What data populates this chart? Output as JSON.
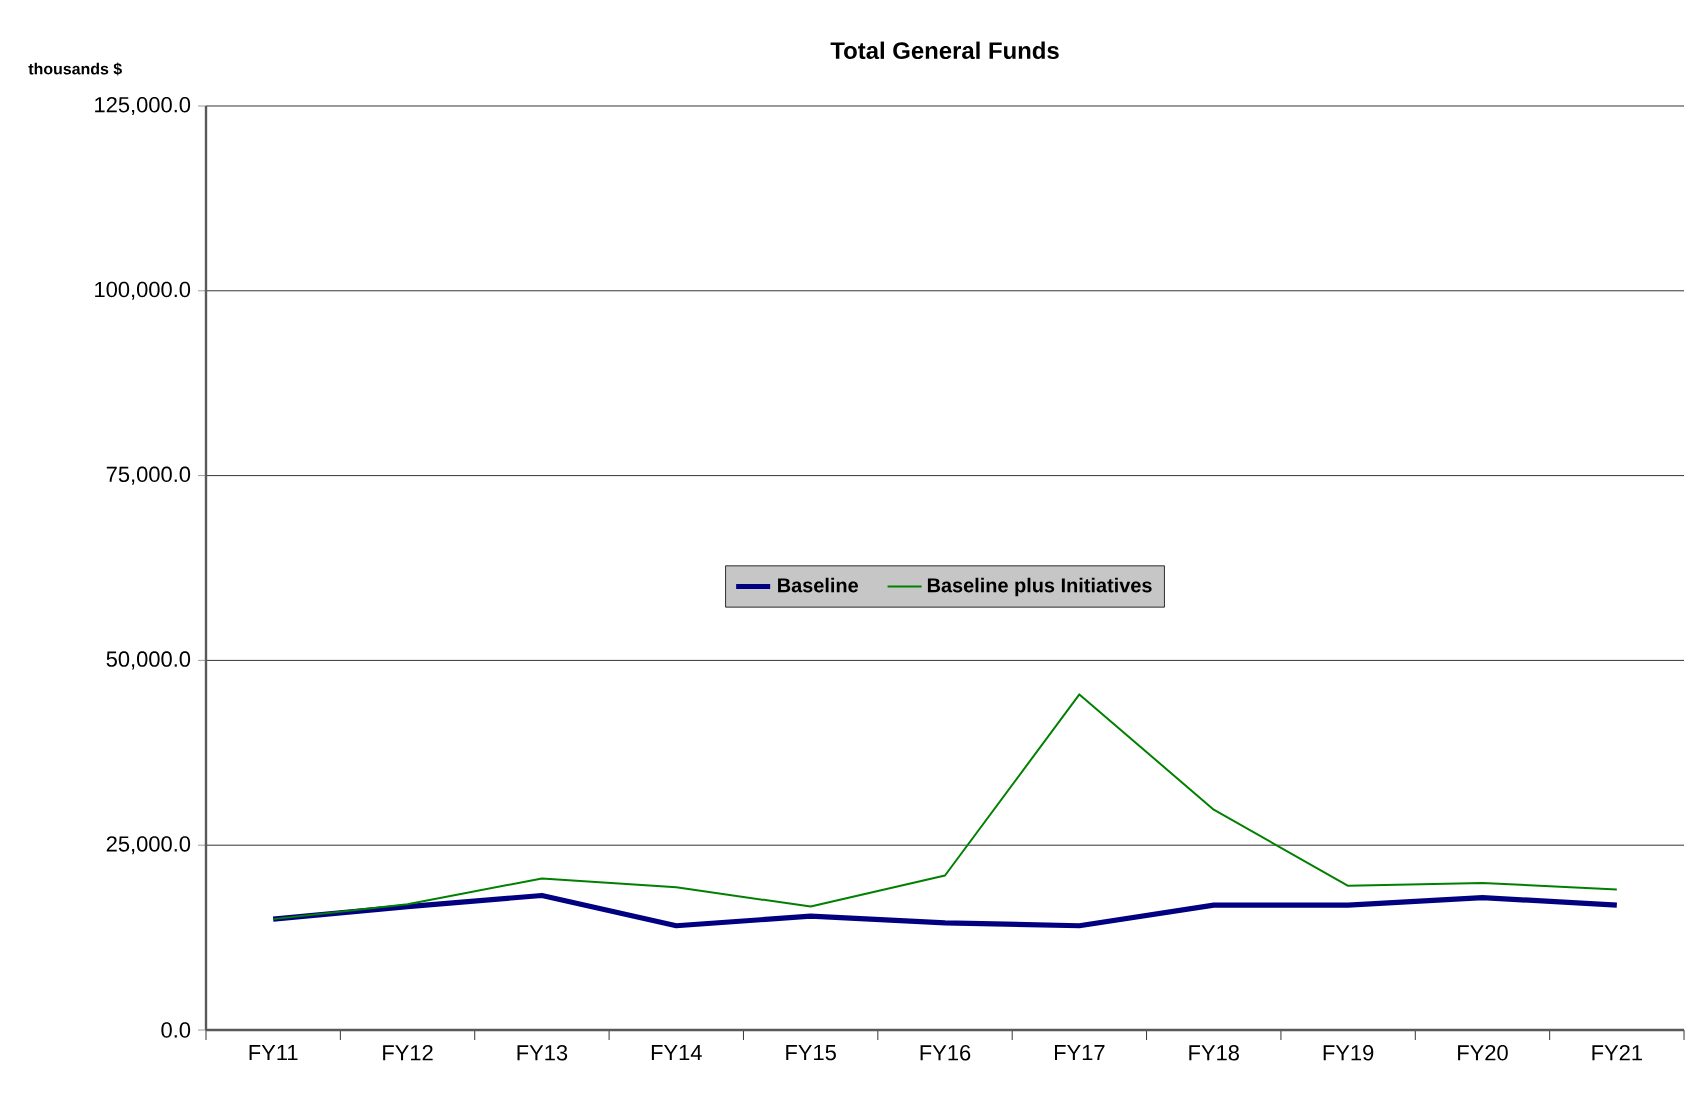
{
  "chart_data": {
    "type": "line",
    "title": "Total General Funds",
    "ylabel": "thousands $",
    "categories": [
      "FY11",
      "FY12",
      "FY13",
      "FY14",
      "FY15",
      "FY16",
      "FY17",
      "FY18",
      "FY19",
      "FY20",
      "FY21"
    ],
    "series": [
      {
        "name": "Baseline",
        "color": "#000080",
        "values": [
          15000,
          16700,
          18200,
          14100,
          15400,
          14500,
          14100,
          16900,
          16900,
          17900,
          16900
        ]
      },
      {
        "name": "Baseline plus Initiatives",
        "color": "#008000",
        "values": [
          15000,
          17000,
          20500,
          19300,
          16700,
          20900,
          45400,
          29800,
          19500,
          19900,
          19000
        ]
      }
    ],
    "ylim": [
      0,
      125000
    ],
    "yticks": [
      {
        "value": 0,
        "label": "0.0"
      },
      {
        "value": 25000,
        "label": "25,000.0"
      },
      {
        "value": 50000,
        "label": "50,000.0"
      },
      {
        "value": 75000,
        "label": "75,000.0"
      },
      {
        "value": 100000,
        "label": "100,000.0"
      },
      {
        "value": 125000,
        "label": "125,000.0"
      }
    ],
    "grid": "y",
    "legend": "center",
    "marker": "none",
    "line_style": "solid"
  }
}
